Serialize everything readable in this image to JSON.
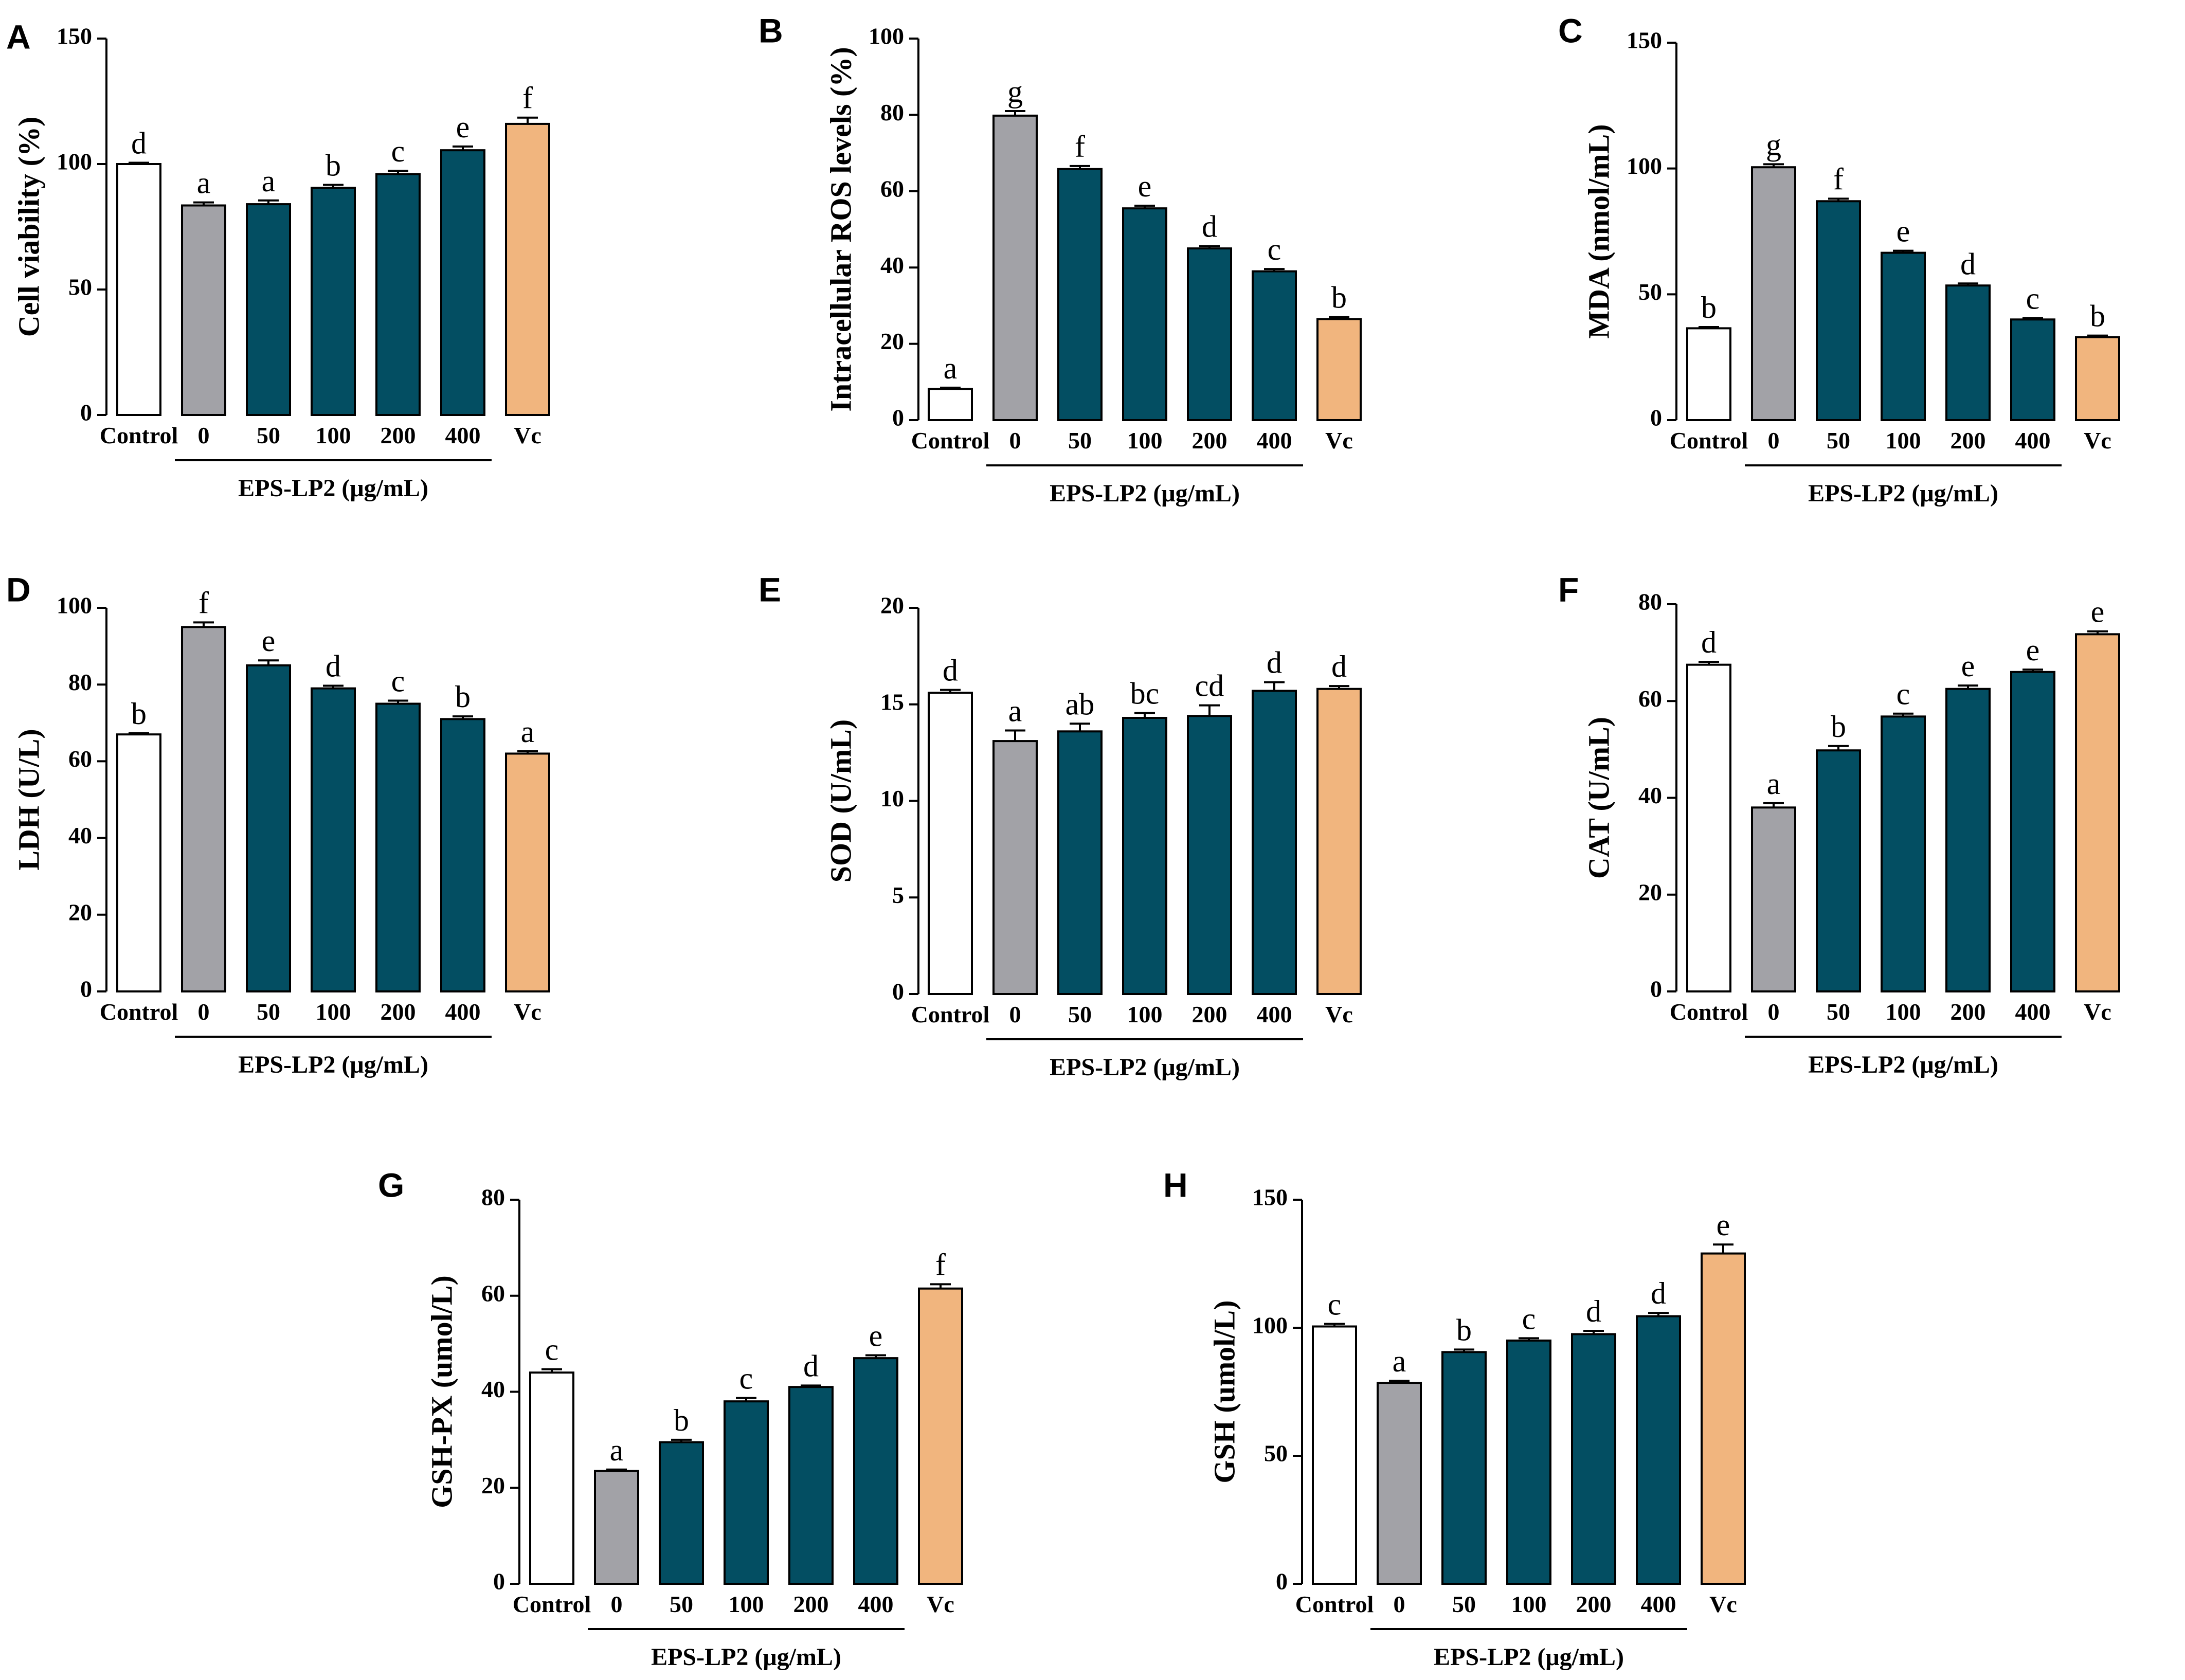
{
  "colors": {
    "control": "#ffffff",
    "zero": "#a2a2a7",
    "eps": "#034e62",
    "vc": "#f1b57e",
    "stroke": "#000000"
  },
  "chart_data": [
    {
      "panel": "A",
      "type": "bar",
      "ylabel": "Cell viability (%)",
      "ylim": [
        0,
        150
      ],
      "yticks": [
        0,
        50,
        100,
        150
      ],
      "categories": [
        "Control",
        "0",
        "50",
        "100",
        "200",
        "400",
        "Vc"
      ],
      "group_label": "EPS-LP2 (μg/mL)",
      "values": [
        100,
        83.5,
        84,
        90.5,
        96,
        105.5,
        116
      ],
      "errors": [
        0.5,
        1.2,
        1.5,
        1.2,
        1.3,
        1.5,
        2.5
      ],
      "letters": [
        "d",
        "a",
        "a",
        "b",
        "c",
        "e",
        "f"
      ]
    },
    {
      "panel": "B",
      "type": "bar",
      "ylabel": "Intracellular ROS levels (%)",
      "ylim": [
        0,
        100
      ],
      "yticks": [
        0,
        20,
        40,
        60,
        80,
        100
      ],
      "categories": [
        "Control",
        "0",
        "50",
        "100",
        "200",
        "400",
        "Vc"
      ],
      "group_label": "EPS-LP2 (μg/mL)",
      "values": [
        8.2,
        79.8,
        65.8,
        55.5,
        45,
        39,
        26.5
      ],
      "errors": [
        0.3,
        1.2,
        0.8,
        0.7,
        0.6,
        0.6,
        0.5
      ],
      "letters": [
        "a",
        "g",
        "f",
        "e",
        "d",
        "c",
        "b"
      ]
    },
    {
      "panel": "C",
      "type": "bar",
      "ylabel": "MDA (nmol/mL)",
      "ylim": [
        0,
        150
      ],
      "yticks": [
        0,
        50,
        100,
        150
      ],
      "categories": [
        "Control",
        "0",
        "50",
        "100",
        "200",
        "400",
        "Vc"
      ],
      "group_label": "EPS-LP2 (μg/mL)",
      "values": [
        36.5,
        100.5,
        87,
        66.5,
        53.5,
        40,
        33
      ],
      "errors": [
        0.5,
        1.2,
        1.0,
        0.8,
        0.8,
        0.6,
        0.6
      ],
      "letters": [
        "b",
        "g",
        "f",
        "e",
        "d",
        "c",
        "b"
      ]
    },
    {
      "panel": "D",
      "type": "bar",
      "ylabel": "LDH (U/L)",
      "ylim": [
        0,
        100
      ],
      "yticks": [
        0,
        20,
        40,
        60,
        80,
        100
      ],
      "categories": [
        "Control",
        "0",
        "50",
        "100",
        "200",
        "400",
        "Vc"
      ],
      "group_label": "EPS-LP2 (μg/mL)",
      "values": [
        67,
        95,
        85,
        79,
        75,
        71,
        62
      ],
      "errors": [
        0.3,
        1.2,
        1.3,
        0.7,
        0.8,
        0.7,
        0.6
      ],
      "letters": [
        "b",
        "f",
        "e",
        "d",
        "c",
        "b",
        "a"
      ]
    },
    {
      "panel": "E",
      "type": "bar",
      "ylabel": "SOD (U/mL)",
      "ylim": [
        0,
        20
      ],
      "yticks": [
        0,
        5,
        10,
        15,
        20
      ],
      "categories": [
        "Control",
        "0",
        "50",
        "100",
        "200",
        "400",
        "Vc"
      ],
      "group_label": "EPS-LP2 (μg/mL)",
      "values": [
        15.6,
        13.1,
        13.6,
        14.3,
        14.4,
        15.7,
        15.8
      ],
      "errors": [
        0.15,
        0.55,
        0.4,
        0.25,
        0.55,
        0.45,
        0.15
      ],
      "letters": [
        "d",
        "a",
        "ab",
        "bc",
        "cd",
        "d",
        "d"
      ]
    },
    {
      "panel": "F",
      "type": "bar",
      "ylabel": "CAT (U/mL)",
      "ylim": [
        0,
        80
      ],
      "yticks": [
        0,
        20,
        40,
        60,
        80
      ],
      "categories": [
        "Control",
        "0",
        "50",
        "100",
        "200",
        "400",
        "Vc"
      ],
      "group_label": "EPS-LP2 (μg/mL)",
      "values": [
        67.5,
        38,
        49.8,
        56.8,
        62.5,
        66,
        73.8
      ],
      "errors": [
        0.6,
        0.9,
        0.9,
        0.6,
        0.7,
        0.5,
        0.6
      ],
      "letters": [
        "d",
        "a",
        "b",
        "c",
        "e",
        "e",
        "e"
      ]
    },
    {
      "panel": "G",
      "type": "bar",
      "ylabel": "GSH-PX (umol/L)",
      "ylim": [
        0,
        80
      ],
      "yticks": [
        0,
        20,
        40,
        60,
        80
      ],
      "categories": [
        "Control",
        "0",
        "50",
        "100",
        "200",
        "400",
        "Vc"
      ],
      "group_label": "EPS-LP2 (μg/mL)",
      "values": [
        44,
        23.5,
        29.5,
        38,
        41,
        47,
        61.5
      ],
      "errors": [
        0.7,
        0.3,
        0.5,
        0.7,
        0.3,
        0.6,
        0.9
      ],
      "letters": [
        "c",
        "a",
        "b",
        "c",
        "d",
        "e",
        "f"
      ]
    },
    {
      "panel": "H",
      "type": "bar",
      "ylabel": "GSH (umol/L)",
      "ylim": [
        0,
        150
      ],
      "yticks": [
        0,
        50,
        100,
        150
      ],
      "categories": [
        "Control",
        "0",
        "50",
        "100",
        "200",
        "400",
        "Vc"
      ],
      "group_label": "EPS-LP2 (μg/mL)",
      "values": [
        100.5,
        78.5,
        90.5,
        95,
        97.5,
        104.5,
        129
      ],
      "errors": [
        1.0,
        0.8,
        1.0,
        0.9,
        1.3,
        1.3,
        3.5
      ],
      "letters": [
        "c",
        "a",
        "b",
        "c",
        "d",
        "d",
        "e"
      ]
    }
  ]
}
